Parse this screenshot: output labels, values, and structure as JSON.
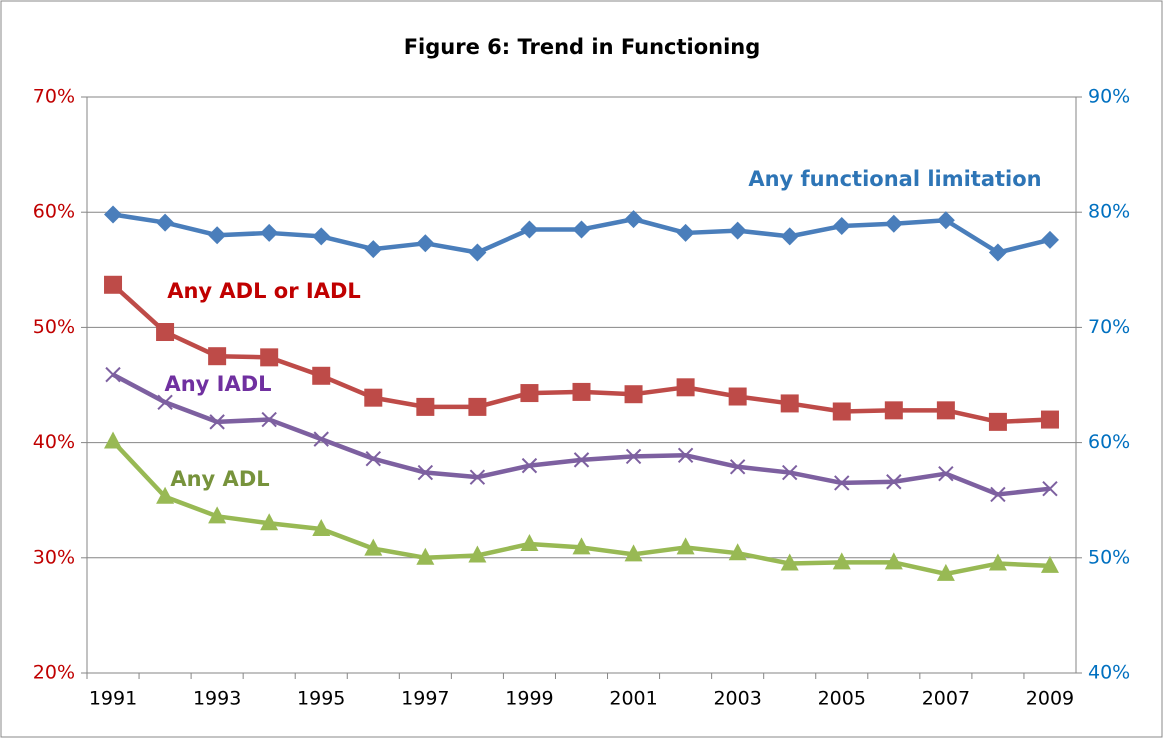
{
  "chart_data": {
    "type": "line",
    "title": "Figure 6: Trend in Functioning",
    "categories": [
      "1991",
      null,
      "1993",
      null,
      "1995",
      null,
      "1997",
      null,
      "1999",
      null,
      "2001",
      null,
      "2003",
      null,
      "2005",
      null,
      "2007",
      null,
      "2009"
    ],
    "ylim": [
      20,
      70
    ],
    "yticks": [
      {
        "value": 20,
        "label": "20%"
      },
      {
        "value": 30,
        "label": "30%"
      },
      {
        "value": 40,
        "label": "40%"
      },
      {
        "value": 50,
        "label": "50%"
      },
      {
        "value": 60,
        "label": "60%"
      },
      {
        "value": 70,
        "label": "70%"
      }
    ],
    "y2lim": [
      40,
      90
    ],
    "y2ticks": [
      {
        "value": 40,
        "label": "40%"
      },
      {
        "value": 50,
        "label": "50%"
      },
      {
        "value": 60,
        "label": "60%"
      },
      {
        "value": 70,
        "label": "70%"
      },
      {
        "value": 80,
        "label": "80%"
      },
      {
        "value": 90,
        "label": "90%"
      }
    ],
    "ytick_color": "#c00000",
    "y2tick_color": "#0070c0",
    "grid": true,
    "series": [
      {
        "name": "Any functional limitation",
        "color": "#4a7ebb",
        "label_color": "#2e75b6",
        "marker": "diamond",
        "axis": "y2",
        "values": [
          79.8,
          79.1,
          78.0,
          78.2,
          77.9,
          76.8,
          77.3,
          76.5,
          78.5,
          78.5,
          79.4,
          78.2,
          78.4,
          77.9,
          78.8,
          79.0,
          79.3,
          76.5,
          77.6
        ]
      },
      {
        "name": "Any ADL or IADL",
        "color": "#be4b48",
        "label_color": "#c00000",
        "marker": "square",
        "values": [
          53.7,
          49.6,
          47.5,
          47.4,
          45.8,
          43.9,
          43.1,
          43.1,
          44.3,
          44.4,
          44.2,
          44.8,
          44.0,
          43.4,
          42.7,
          42.8,
          42.8,
          41.8,
          42.0
        ]
      },
      {
        "name": "Any IADL",
        "color": "#7d60a0",
        "label_color": "#7030a0",
        "marker": "x",
        "values": [
          45.9,
          43.5,
          41.8,
          42.0,
          40.3,
          38.6,
          37.4,
          37.0,
          38.0,
          38.5,
          38.8,
          38.9,
          37.9,
          37.4,
          36.5,
          36.6,
          37.3,
          35.5,
          36.0
        ]
      },
      {
        "name": "Any ADL",
        "color": "#98b954",
        "label_color": "#77933c",
        "marker": "triangle",
        "values": [
          40.1,
          35.3,
          33.6,
          33.0,
          32.5,
          30.8,
          30.0,
          30.2,
          31.2,
          30.9,
          30.3,
          30.9,
          30.4,
          29.5,
          29.6,
          29.6,
          28.6,
          29.5,
          29.3
        ]
      }
    ]
  }
}
